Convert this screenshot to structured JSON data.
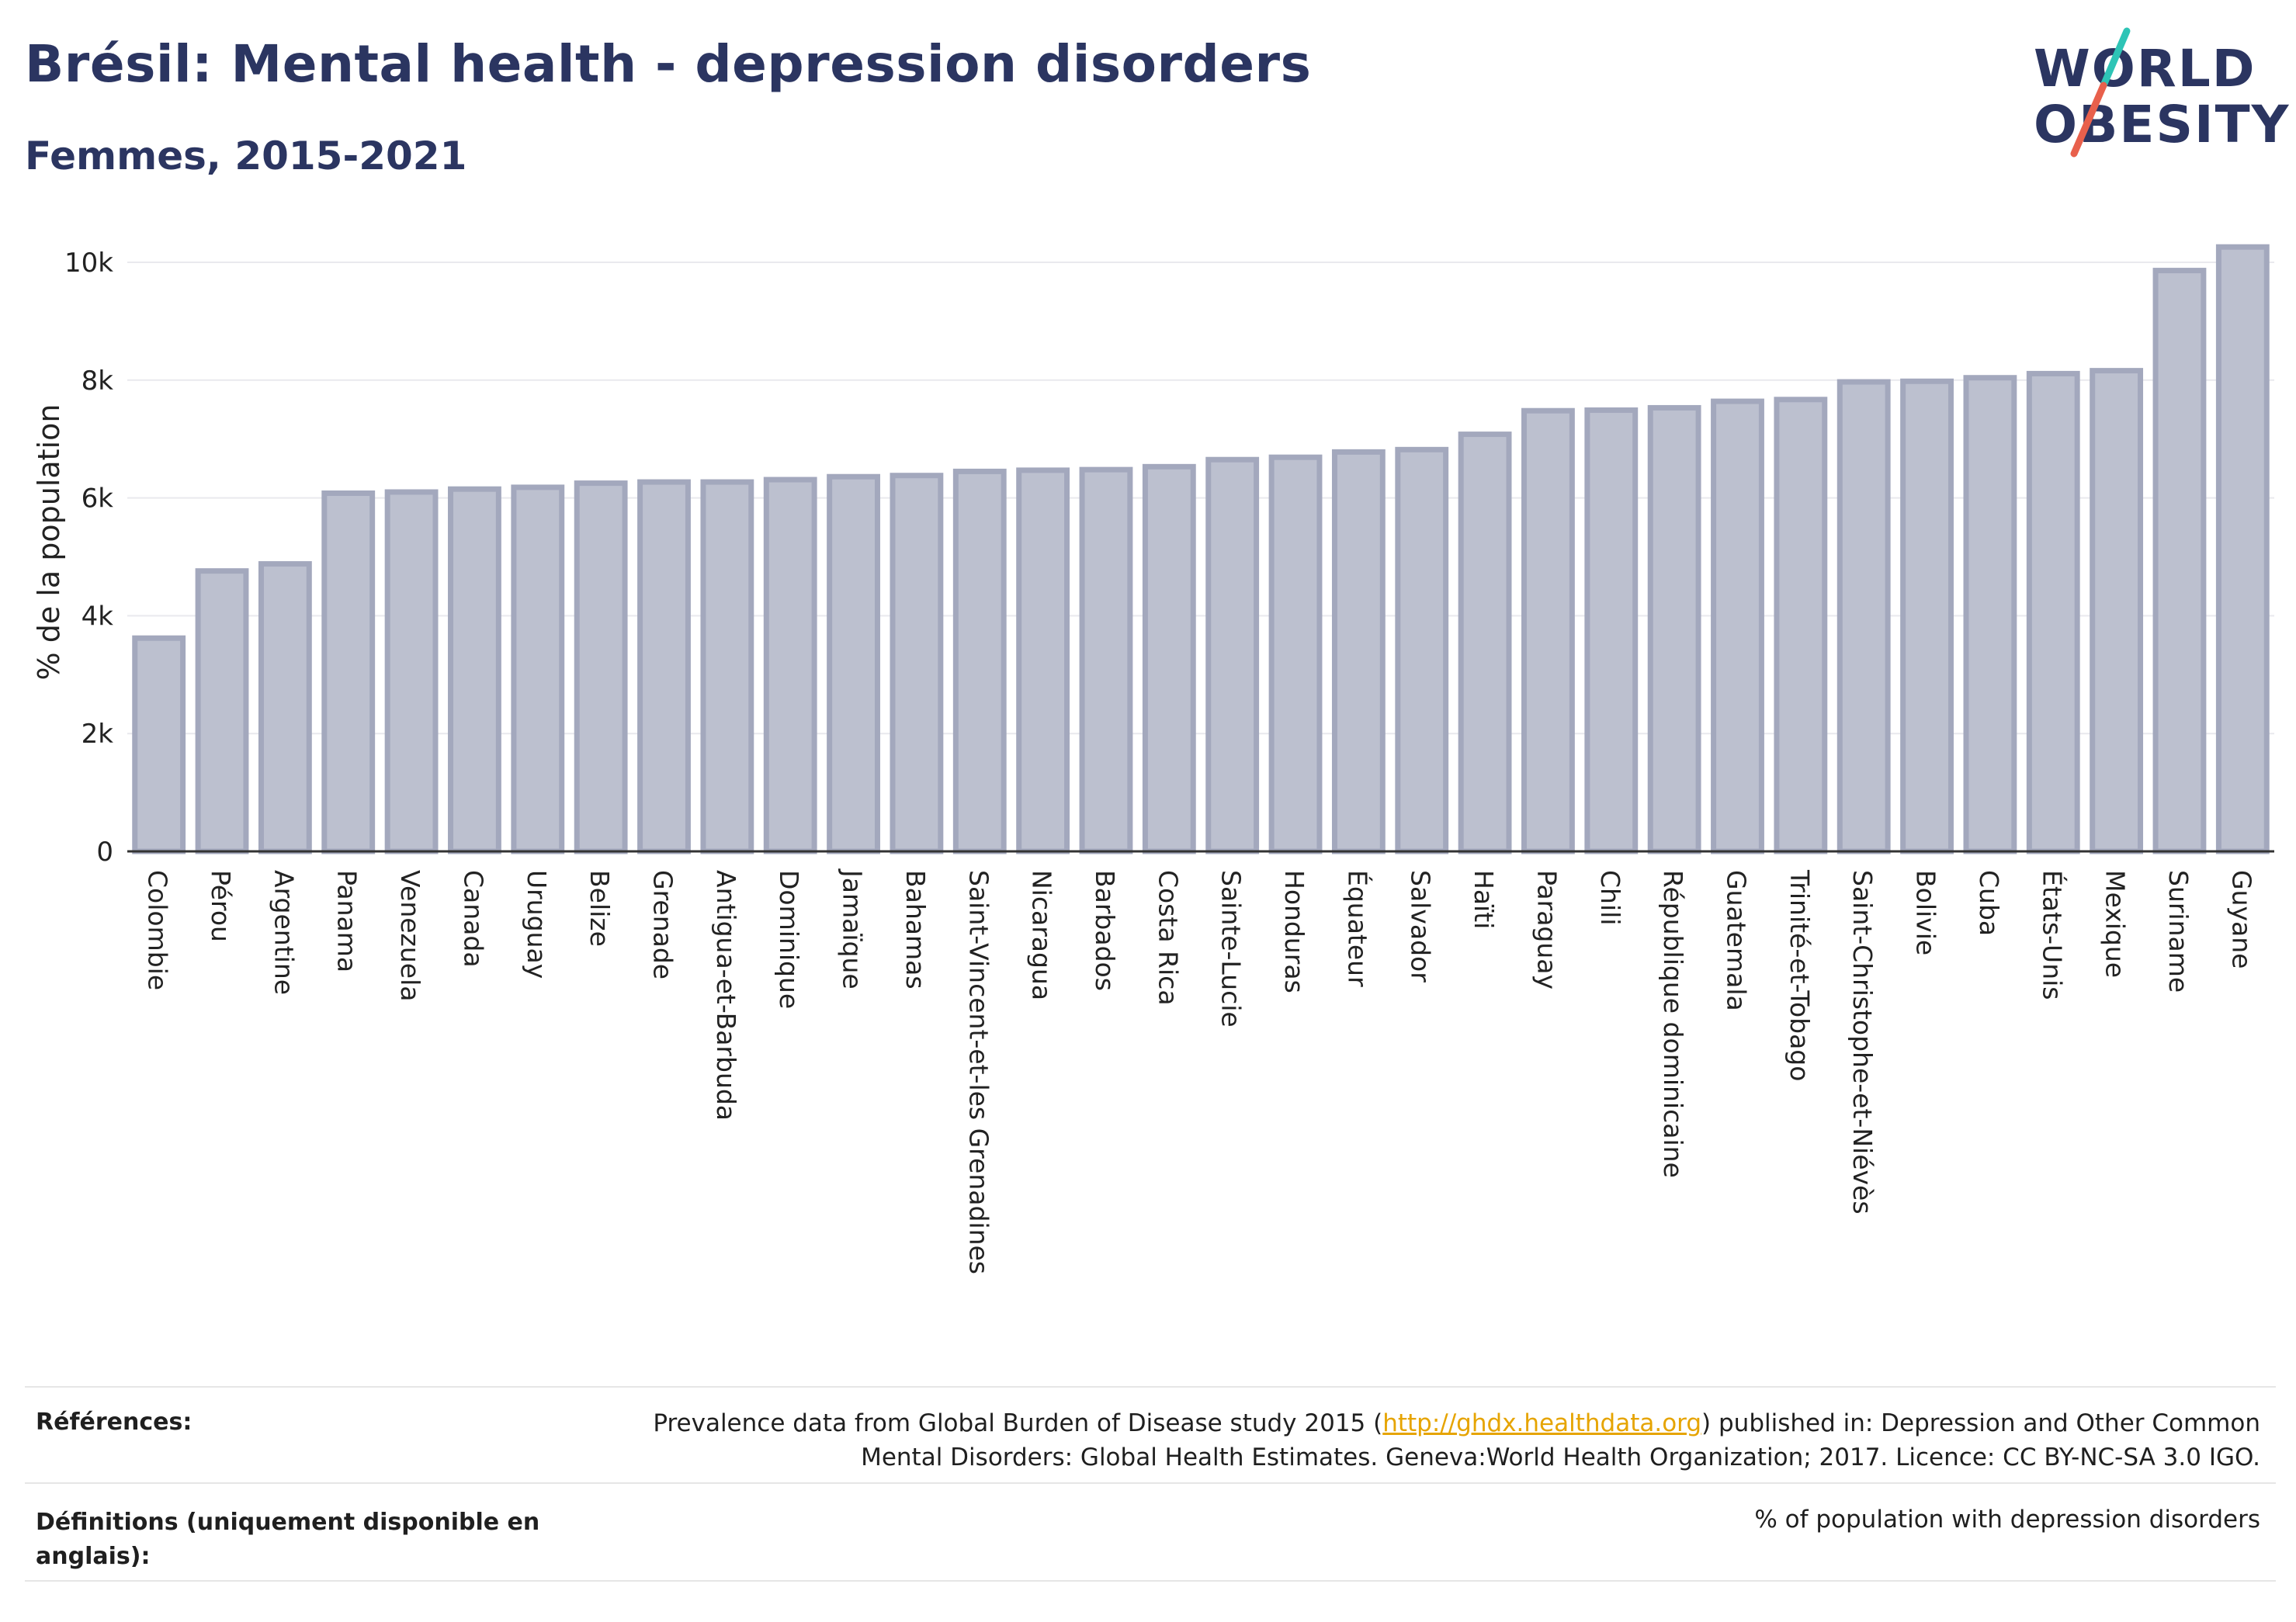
{
  "header": {
    "title": "Brésil: Mental health - depression disorders",
    "subtitle": "Femmes, 2015-2021"
  },
  "logo": {
    "line1": "WORLD",
    "line2": "OBESITY",
    "brand_color": "#2b3561",
    "slash_colors": [
      "#2ec4b6",
      "#e8604c"
    ]
  },
  "chart_data": {
    "type": "bar",
    "ylabel": "% de la population",
    "ylim": [
      0,
      10500
    ],
    "yticks": [
      0,
      2000,
      4000,
      6000,
      8000,
      10000
    ],
    "ytick_labels": [
      "0",
      "2k",
      "4k",
      "6k",
      "8k",
      "10k"
    ],
    "grid": true,
    "bar_color": "#bcc0cf",
    "bar_edge_color": "#a3a8bd",
    "categories": [
      "Colombie",
      "Pérou",
      "Argentine",
      "Panama",
      "Venezuela",
      "Canada",
      "Uruguay",
      "Belize",
      "Grenade",
      "Antigua-et-Barbuda",
      "Dominique",
      "Jamaïque",
      "Bahamas",
      "Saint-Vincent-et-les Grenadines",
      "Nicaragua",
      "Barbados",
      "Costa Rica",
      "Sainte-Lucie",
      "Honduras",
      "Équateur",
      "Salvador",
      "Haïti",
      "Paraguay",
      "Chili",
      "République dominicaine",
      "Guatemala",
      "Trinité-et-Tobago",
      "Saint-Christophe-et-Niévès",
      "Bolivie",
      "Cuba",
      "États-Unis",
      "Mexique",
      "Suriname",
      "Guyane"
    ],
    "values": [
      3620,
      4760,
      4880,
      6080,
      6100,
      6150,
      6180,
      6250,
      6270,
      6270,
      6310,
      6360,
      6380,
      6450,
      6470,
      6480,
      6530,
      6650,
      6690,
      6780,
      6820,
      7080,
      7480,
      7490,
      7530,
      7640,
      7670,
      7970,
      7980,
      8040,
      8110,
      8160,
      9860,
      10260
    ]
  },
  "footer": {
    "references_label": "Références:",
    "references_pre": "Prevalence data from Global Burden of Disease study 2015 (",
    "references_link": "http://ghdx.healthdata.org",
    "references_post": ") published in: Depression and Other Common Mental Disorders: Global Health Estimates. Geneva:World Health Organization; 2017. Licence: CC BY-NC-SA 3.0 IGO.",
    "definitions_label": "Définitions (uniquement disponible en anglais):",
    "definitions_text": "% of population with depression disorders"
  }
}
